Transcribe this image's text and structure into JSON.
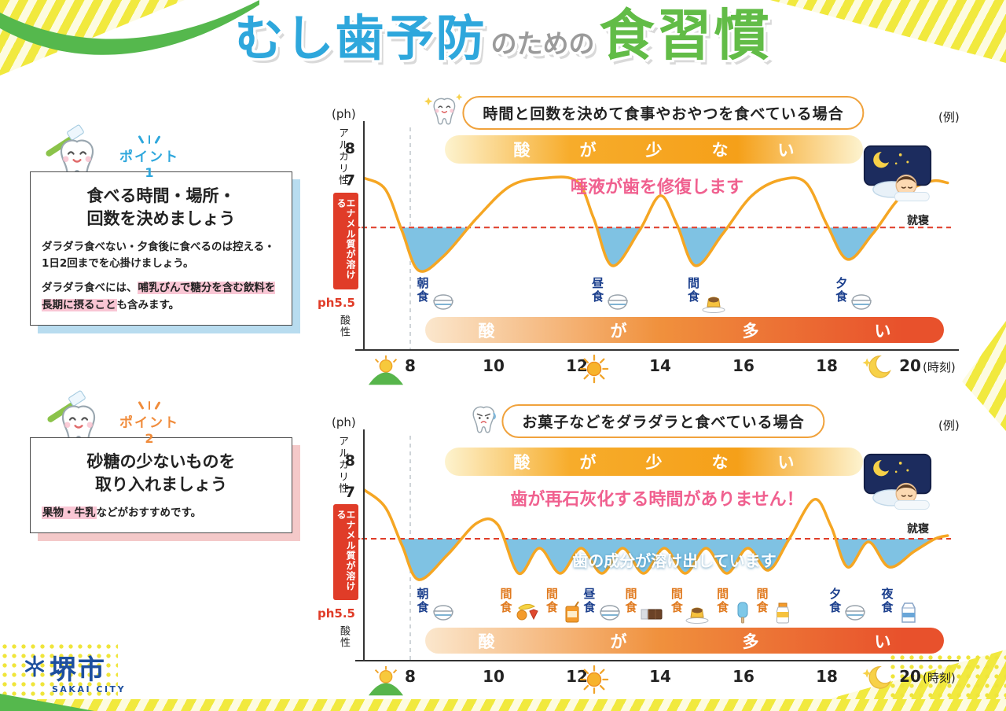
{
  "title": {
    "part1": "むし歯予防",
    "part2": "のための",
    "part3": "食習慣"
  },
  "points": [
    {
      "badge_label": "ポイント",
      "badge_number": "1",
      "heading_line1": "食べる時間・場所・",
      "heading_line2": "回数を決めましょう",
      "para1_pink": "ダラダラ食べない・夕食後に食べるのは控える・1日2回まで",
      "para1_black": "を心掛けましょう。",
      "para2_pre": "ダラダラ食べには、",
      "para2_highlight": "哺乳びんで糖分を含む飲料を長期に摂ること",
      "para2_post": "も含みます。"
    },
    {
      "badge_label": "ポイント",
      "badge_number": "2",
      "heading_line1": "砂糖の少ないものを",
      "heading_line2": "取り入れましょう",
      "para1_highlight": "果物・牛乳",
      "para1_post": "などがおすすめです。"
    }
  ],
  "logo": {
    "name": "堺市",
    "subname": "SAKAI CITY"
  },
  "colors": {
    "title_blue": "#2ea7dc",
    "title_gray": "#9b9b9b",
    "title_green": "#62bc47",
    "curve_orange": "#f5a623",
    "acid_fill_blue": "#7fc2e3",
    "threshold_red": "#e03c28",
    "meal_blue": "#1a3e8c",
    "meal_orange": "#e07a1f",
    "annotation_pink": "#f0608f",
    "point1_accent": "#2ea7dc",
    "point2_accent": "#f08c3c",
    "logo_blue": "#1d4f9e"
  },
  "chart_data": [
    {
      "type": "line",
      "title": "時間と回数を決めて食事やおやつを食べている場合",
      "example_label": "(例)",
      "tooth_mood": "happy",
      "y_unit": "(ph)",
      "y_axis_alkaline": "アルカリ性",
      "y_axis_acidic": "酸性",
      "enamel_label": "エナメル質が溶ける",
      "threshold_label": "ph5.5",
      "threshold_value": 5.5,
      "banner_low_acid": "酸が少ない",
      "banner_high_acid": "酸が多い",
      "annotation_pink": "唾液が歯を修復します",
      "annotation_white": "",
      "sleep_label": "就寝",
      "x_ticks": [
        8,
        10,
        12,
        14,
        16,
        18,
        20
      ],
      "x_axis_unit": "(時刻)",
      "y_ticks": [
        8,
        7,
        6,
        5,
        4
      ],
      "meals": [
        {
          "label": "朝食",
          "hour": 8.35,
          "icon": "rice-bowl",
          "color": "#1a3e8c"
        },
        {
          "label": "昼食",
          "hour": 12.55,
          "icon": "rice-bowl",
          "color": "#1a3e8c"
        },
        {
          "label": "間食",
          "hour": 14.85,
          "icon": "pudding",
          "color": "#1a3e8c"
        },
        {
          "label": "夕食",
          "hour": 18.4,
          "icon": "rice-bowl",
          "color": "#1a3e8c"
        }
      ],
      "curve_hour_ph": [
        [
          6.9,
          7.05
        ],
        [
          7.4,
          6.7
        ],
        [
          7.8,
          5.4
        ],
        [
          8.2,
          4.15
        ],
        [
          8.8,
          4.6
        ],
        [
          9.6,
          5.8
        ],
        [
          10.4,
          6.8
        ],
        [
          11.2,
          7.05
        ],
        [
          12.0,
          6.95
        ],
        [
          12.4,
          5.8
        ],
        [
          12.85,
          4.3
        ],
        [
          13.5,
          5.4
        ],
        [
          14.0,
          6.5
        ],
        [
          14.4,
          5.6
        ],
        [
          14.85,
          4.3
        ],
        [
          15.5,
          5.3
        ],
        [
          16.2,
          6.5
        ],
        [
          16.9,
          7.0
        ],
        [
          17.5,
          6.9
        ],
        [
          18.0,
          5.6
        ],
        [
          18.5,
          4.5
        ],
        [
          19.1,
          5.3
        ],
        [
          19.8,
          6.5
        ],
        [
          20.5,
          6.95
        ],
        [
          20.9,
          6.9
        ]
      ]
    },
    {
      "type": "line",
      "title": "お菓子などをダラダラと食べている場合",
      "example_label": "(例)",
      "tooth_mood": "sad",
      "y_unit": "(ph)",
      "y_axis_alkaline": "アルカリ性",
      "y_axis_acidic": "酸性",
      "enamel_label": "エナメル質が溶ける",
      "threshold_label": "ph5.5",
      "threshold_value": 5.5,
      "banner_low_acid": "酸が少ない",
      "banner_high_acid": "酸が多い",
      "annotation_pink": "歯が再石灰化する時間がありません！",
      "annotation_white": "歯の成分が溶け出しています",
      "sleep_label": "就寝",
      "x_ticks": [
        8,
        10,
        12,
        14,
        16,
        18,
        20
      ],
      "x_axis_unit": "(時刻)",
      "y_ticks": [
        8,
        7,
        6,
        5,
        4
      ],
      "meals": [
        {
          "label": "朝食",
          "hour": 8.35,
          "icon": "rice-bowl",
          "color": "#1a3e8c"
        },
        {
          "label": "間食",
          "hour": 10.35,
          "icon": "fruits",
          "color": "#e07a1f"
        },
        {
          "label": "間食",
          "hour": 11.45,
          "icon": "juice",
          "color": "#e07a1f"
        },
        {
          "label": "昼食",
          "hour": 12.35,
          "icon": "rice-bowl",
          "color": "#1a3e8c"
        },
        {
          "label": "間食",
          "hour": 13.35,
          "icon": "chocolate",
          "color": "#e07a1f"
        },
        {
          "label": "間食",
          "hour": 14.45,
          "icon": "pudding",
          "color": "#e07a1f"
        },
        {
          "label": "間食",
          "hour": 15.55,
          "icon": "popsicle",
          "color": "#e07a1f"
        },
        {
          "label": "間食",
          "hour": 16.5,
          "icon": "drink",
          "color": "#e07a1f"
        },
        {
          "label": "夕食",
          "hour": 18.25,
          "icon": "rice-bowl",
          "color": "#1a3e8c"
        },
        {
          "label": "夜食",
          "hour": 19.5,
          "icon": "milk",
          "color": "#1a3e8c"
        }
      ],
      "curve_hour_ph": [
        [
          6.9,
          7.05
        ],
        [
          7.4,
          6.5
        ],
        [
          7.8,
          5.3
        ],
        [
          8.2,
          4.2
        ],
        [
          8.9,
          5.0
        ],
        [
          9.6,
          6.0
        ],
        [
          10.1,
          5.95
        ],
        [
          10.6,
          4.4
        ],
        [
          11.1,
          5.2
        ],
        [
          11.6,
          4.4
        ],
        [
          12.1,
          5.2
        ],
        [
          12.6,
          4.4
        ],
        [
          13.1,
          5.2
        ],
        [
          13.6,
          4.4
        ],
        [
          14.1,
          5.2
        ],
        [
          14.6,
          4.4
        ],
        [
          15.1,
          5.2
        ],
        [
          15.6,
          4.4
        ],
        [
          16.1,
          5.2
        ],
        [
          16.6,
          4.5
        ],
        [
          17.1,
          5.5
        ],
        [
          17.7,
          6.75
        ],
        [
          18.1,
          5.9
        ],
        [
          18.5,
          4.6
        ],
        [
          19.0,
          5.4
        ],
        [
          19.5,
          4.6
        ],
        [
          20.1,
          5.1
        ],
        [
          20.6,
          5.5
        ],
        [
          20.9,
          5.6
        ]
      ]
    }
  ]
}
